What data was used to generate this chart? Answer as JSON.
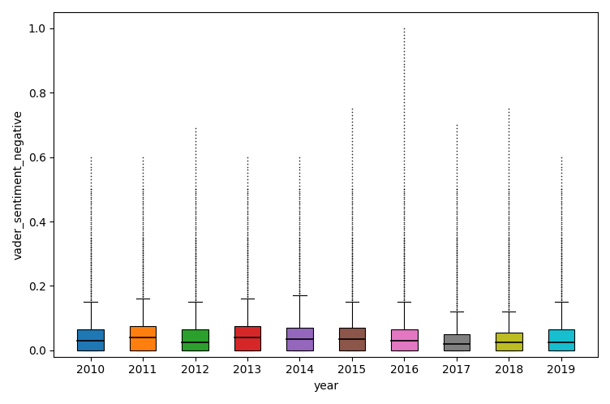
{
  "years": [
    2010,
    2011,
    2012,
    2013,
    2014,
    2015,
    2016,
    2017,
    2018,
    2019
  ],
  "colors": [
    "#1f77b4",
    "#ff7f0e",
    "#2ca02c",
    "#d62728",
    "#9467bd",
    "#8c564b",
    "#e377c2",
    "#7f7f7f",
    "#bcbd22",
    "#17becf"
  ],
  "ylabel": "vader_sentiment_negative",
  "xlabel": "year",
  "ylim": [
    -0.02,
    1.05
  ],
  "box_stats": {
    "2010": {
      "q1": 0.0,
      "median": 0.03,
      "q3": 0.065,
      "whisker_low": 0.0,
      "whisker_high": 0.15
    },
    "2011": {
      "q1": 0.0,
      "median": 0.04,
      "q3": 0.075,
      "whisker_low": 0.0,
      "whisker_high": 0.16
    },
    "2012": {
      "q1": 0.0,
      "median": 0.025,
      "q3": 0.065,
      "whisker_low": 0.0,
      "whisker_high": 0.15
    },
    "2013": {
      "q1": 0.0,
      "median": 0.04,
      "q3": 0.075,
      "whisker_low": 0.0,
      "whisker_high": 0.16
    },
    "2014": {
      "q1": 0.0,
      "median": 0.035,
      "q3": 0.07,
      "whisker_low": 0.0,
      "whisker_high": 0.17
    },
    "2015": {
      "q1": 0.0,
      "median": 0.035,
      "q3": 0.07,
      "whisker_low": 0.0,
      "whisker_high": 0.15
    },
    "2016": {
      "q1": 0.0,
      "median": 0.03,
      "q3": 0.065,
      "whisker_low": 0.0,
      "whisker_high": 0.15
    },
    "2017": {
      "q1": 0.0,
      "median": 0.02,
      "q3": 0.05,
      "whisker_low": 0.0,
      "whisker_high": 0.12
    },
    "2018": {
      "q1": 0.0,
      "median": 0.025,
      "q3": 0.055,
      "whisker_low": 0.0,
      "whisker_high": 0.12
    },
    "2019": {
      "q1": 0.0,
      "median": 0.025,
      "q3": 0.065,
      "whisker_low": 0.0,
      "whisker_high": 0.15
    }
  },
  "outlier_max": {
    "2010": 0.6,
    "2011": 0.6,
    "2012": 0.69,
    "2013": 0.6,
    "2014": 0.6,
    "2015": 0.75,
    "2016": 1.0,
    "2017": 0.7,
    "2018": 0.75,
    "2019": 0.6
  },
  "figsize": [
    7.52,
    4.98
  ],
  "dpi": 100
}
